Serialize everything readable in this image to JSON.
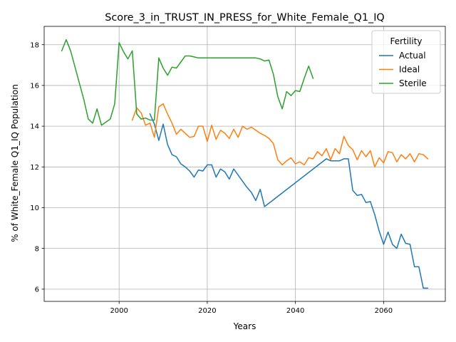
{
  "chart_data": {
    "type": "line",
    "title": "Score_3_in_TRUST_IN_PRESS_for_White_Female_Q1_IQ",
    "xlabel": "Years",
    "ylabel": "% of White_Female Q1_IQ Population",
    "xlim": [
      1983,
      2074
    ],
    "ylim": [
      5.4,
      18.9
    ],
    "xticks": [
      2000,
      2020,
      2040,
      2060
    ],
    "yticks": [
      6,
      8,
      10,
      12,
      14,
      16,
      18
    ],
    "grid": true,
    "legend": {
      "title": "Fertility",
      "placement": "top-right"
    },
    "series": [
      {
        "name": "Actual",
        "color": "#1f77b4",
        "x": [
          2007,
          2008,
          2009,
          2010,
          2011,
          2012,
          2013,
          2014,
          2015,
          2016,
          2017,
          2018,
          2019,
          2020,
          2021,
          2022,
          2023,
          2024,
          2025,
          2026,
          2027,
          2028,
          2029,
          2030,
          2031,
          2032,
          2033,
          2047,
          2048,
          2049,
          2050,
          2051,
          2052,
          2053,
          2054,
          2055,
          2056,
          2057,
          2058,
          2059,
          2060,
          2061,
          2062,
          2063,
          2064,
          2065,
          2066,
          2067,
          2068,
          2069,
          2070
        ],
        "y": [
          14.6,
          14.1,
          13.3,
          14.1,
          13.1,
          12.6,
          12.5,
          12.15,
          12.0,
          11.8,
          11.5,
          11.85,
          11.8,
          12.1,
          12.1,
          11.5,
          11.9,
          11.75,
          11.4,
          11.9,
          11.6,
          11.3,
          11.0,
          10.75,
          10.35,
          10.9,
          10.05,
          12.4,
          12.3,
          12.3,
          12.3,
          12.4,
          12.4,
          10.85,
          10.6,
          10.65,
          10.25,
          10.3,
          9.65,
          8.85,
          8.2,
          8.8,
          8.2,
          8.0,
          8.7,
          8.25,
          8.2,
          7.1,
          7.1,
          6.05,
          6.05
        ]
      },
      {
        "name": "Ideal",
        "color": "#ff7f0e",
        "x": [
          2003,
          2004,
          2005,
          2006,
          2007,
          2008,
          2009,
          2010,
          2011,
          2012,
          2013,
          2014,
          2015,
          2016,
          2017,
          2018,
          2019,
          2020,
          2021,
          2022,
          2023,
          2024,
          2025,
          2026,
          2027,
          2028,
          2029,
          2030,
          2031,
          2032,
          2033,
          2034,
          2035,
          2036,
          2037,
          2038,
          2039,
          2040,
          2041,
          2042,
          2043,
          2044,
          2045,
          2046,
          2047,
          2048,
          2049,
          2050,
          2051,
          2052,
          2053,
          2054,
          2055,
          2056,
          2057,
          2058,
          2059,
          2060,
          2061,
          2062,
          2063,
          2064,
          2065,
          2066,
          2067,
          2068,
          2069,
          2070
        ],
        "y": [
          14.3,
          14.9,
          14.65,
          14.05,
          14.15,
          13.45,
          14.95,
          15.1,
          14.6,
          14.15,
          13.6,
          13.85,
          13.65,
          13.45,
          13.5,
          14.0,
          14.0,
          13.25,
          14.05,
          13.35,
          13.8,
          13.65,
          13.4,
          13.85,
          13.45,
          14.0,
          13.85,
          13.95,
          13.8,
          13.65,
          13.55,
          13.4,
          13.15,
          12.35,
          12.1,
          12.3,
          12.45,
          12.15,
          12.25,
          12.1,
          12.45,
          12.4,
          12.75,
          12.55,
          12.9,
          12.35,
          12.9,
          12.65,
          13.5,
          13.05,
          12.85,
          12.35,
          12.8,
          12.5,
          12.8,
          12.0,
          12.45,
          12.2,
          12.75,
          12.7,
          12.25,
          12.6,
          12.4,
          12.65,
          12.25,
          12.65,
          12.6,
          12.4
        ]
      },
      {
        "name": "Sterile",
        "color": "#2ca02c",
        "x": [
          1987,
          1988,
          1989,
          1990,
          1991,
          1992,
          1993,
          1994,
          1995,
          1996,
          1997,
          1998,
          1999,
          2000,
          2001,
          2002,
          2003,
          2004,
          2005,
          2006,
          2007,
          2008,
          2009,
          2010,
          2011,
          2012,
          2013,
          2014,
          2015,
          2016,
          2017,
          2018,
          2019,
          2020,
          2021,
          2022,
          2023,
          2024,
          2025,
          2026,
          2027,
          2028,
          2029,
          2030,
          2031,
          2032,
          2033,
          2034,
          2035,
          2036,
          2037,
          2038,
          2039,
          2040,
          2041,
          2042,
          2043,
          2044
        ],
        "y": [
          17.7,
          18.25,
          17.7,
          16.9,
          16.1,
          15.3,
          14.35,
          14.15,
          14.85,
          14.05,
          14.2,
          14.35,
          15.1,
          18.1,
          17.65,
          17.3,
          17.7,
          14.6,
          14.35,
          14.4,
          14.3,
          14.3,
          17.35,
          16.85,
          16.5,
          16.9,
          16.85,
          17.15,
          17.45,
          17.45,
          17.4,
          17.35,
          17.35,
          17.35,
          17.35,
          17.35,
          17.35,
          17.35,
          17.35,
          17.35,
          17.35,
          17.35,
          17.35,
          17.35,
          17.35,
          17.3,
          17.2,
          17.25,
          16.55,
          15.45,
          14.85,
          15.7,
          15.5,
          15.75,
          15.7,
          16.35,
          16.95,
          16.35
        ]
      }
    ]
  }
}
